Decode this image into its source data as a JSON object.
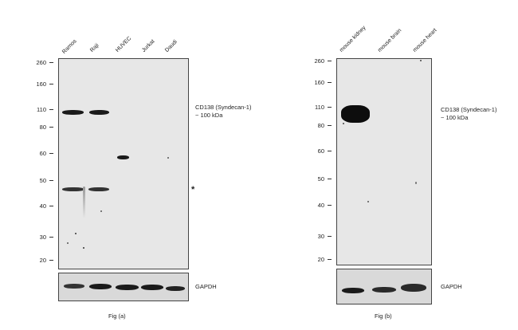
{
  "fig_a": {
    "lanes": [
      "Ramos",
      "Raji",
      "HUVEC",
      "Jurkat",
      "Daudi"
    ],
    "markers": [
      "260",
      "160",
      "110",
      "80",
      "60",
      "50",
      "40",
      "30",
      "20"
    ],
    "target_line1": "CD138 (Syndecan-1)",
    "target_line2": "~ 100 kDa",
    "asterisk": "*",
    "control": "GAPDH",
    "caption": "Fig (a)"
  },
  "fig_b": {
    "lanes": [
      "mouse kidney",
      "mouse brain",
      "mouse heart"
    ],
    "markers": [
      "260",
      "160",
      "110",
      "80",
      "60",
      "50",
      "40",
      "30",
      "20"
    ],
    "target_line1": "CD138 (Syndecan-1)",
    "target_line2": "~ 100 kDa",
    "control": "GAPDH",
    "caption": "Fig (b)"
  }
}
